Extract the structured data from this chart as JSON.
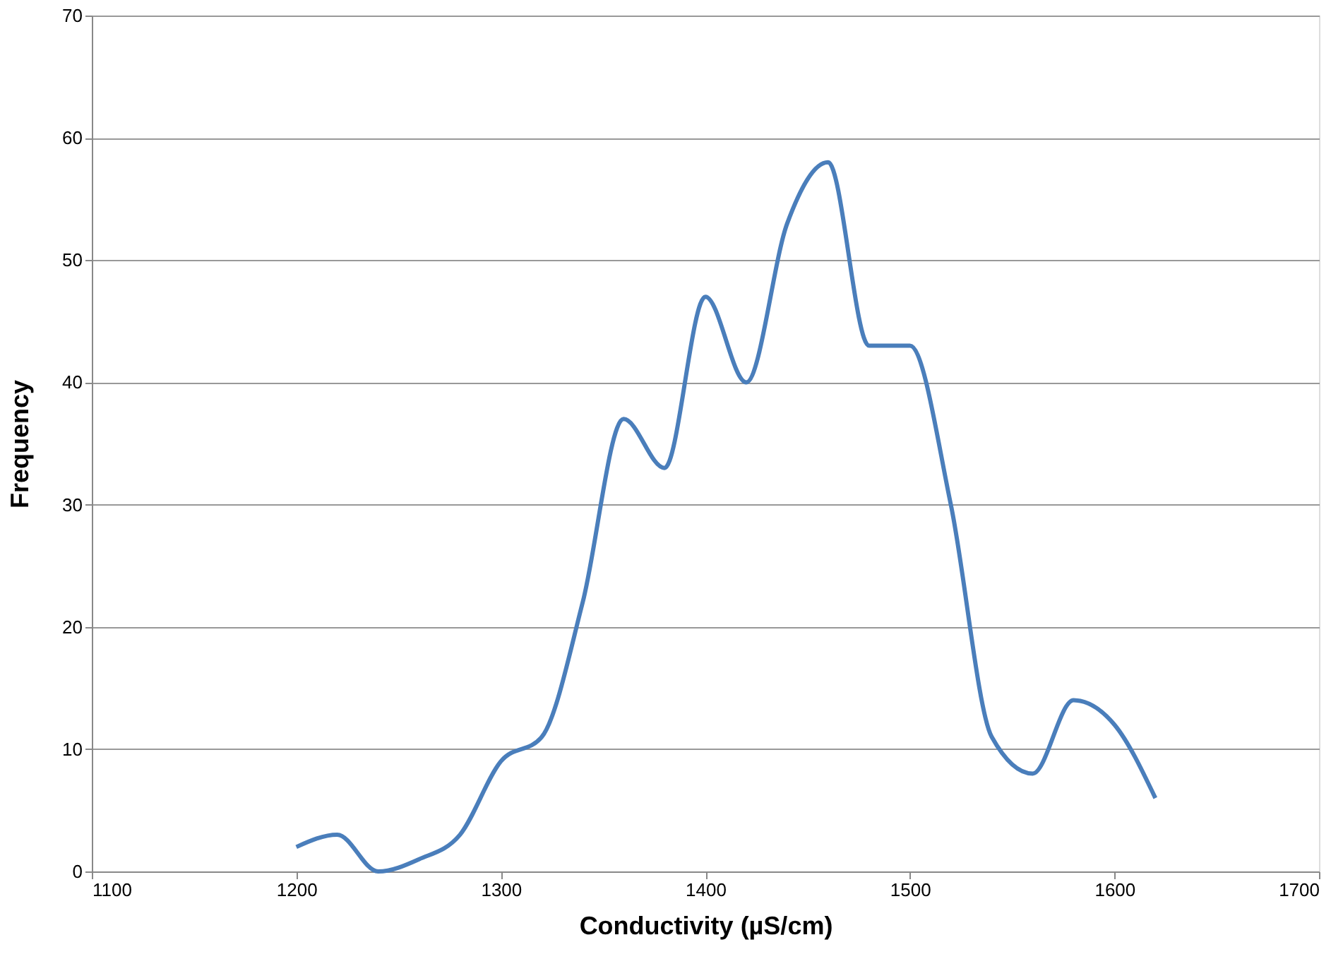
{
  "chart_data": {
    "type": "line",
    "xlabel": "Conductivity (µS/cm)",
    "ylabel": "Frequency",
    "x": [
      1200,
      1220,
      1240,
      1260,
      1280,
      1300,
      1320,
      1340,
      1360,
      1380,
      1400,
      1420,
      1440,
      1460,
      1480,
      1500,
      1520,
      1540,
      1560,
      1580,
      1600,
      1620
    ],
    "series": [
      {
        "color": "#4a7ebb",
        "values": [
          2,
          3,
          0,
          1,
          3,
          9,
          11,
          22,
          37,
          33,
          47,
          40,
          53,
          58,
          43,
          43,
          30,
          11,
          8,
          14,
          12,
          6
        ]
      }
    ],
    "xlim": [
      1100,
      1700
    ],
    "xticks": [
      1100,
      1200,
      1300,
      1400,
      1500,
      1600,
      1700
    ],
    "ylim": [
      0,
      70
    ],
    "yticks": [
      0,
      10,
      20,
      30,
      40,
      50,
      60,
      70
    ],
    "grid": "y",
    "marker": "none",
    "line_style": "solid"
  }
}
